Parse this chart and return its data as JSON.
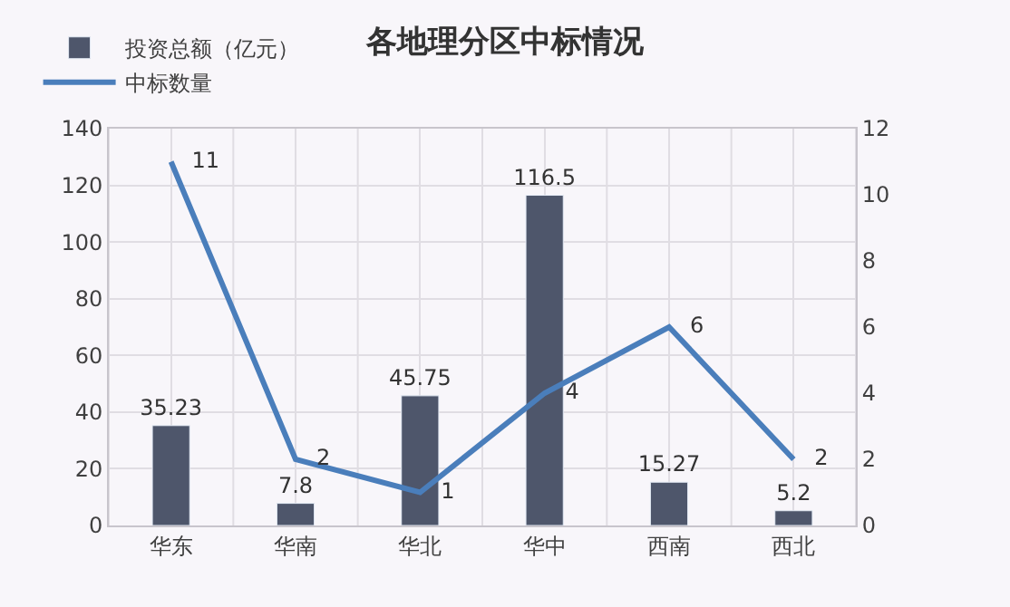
{
  "chart_data": {
    "type": "bar",
    "title": "各地理分区中标情况",
    "categories": [
      "华东",
      "华南",
      "华北",
      "华中",
      "西南",
      "西北"
    ],
    "series": [
      {
        "name": "投资总额（亿元）",
        "color": "#4e566b",
        "values": [
          35.23,
          7.8,
          45.75,
          116.5,
          15.27,
          5.2
        ]
      },
      {
        "name": "中标数量",
        "type": "line",
        "axis": "y2",
        "color": "#4a7ebb",
        "values": [
          11,
          2,
          1,
          4,
          6,
          2
        ]
      }
    ],
    "ylim": [
      0,
      140
    ],
    "yticks": [
      0,
      20,
      40,
      60,
      80,
      100,
      120,
      140
    ],
    "y2lim": [
      0,
      12
    ],
    "y2ticks": [
      0,
      2,
      4,
      6,
      8,
      10,
      12
    ],
    "data_labels": true,
    "grid": true,
    "legend": "top left",
    "marker": "none",
    "line_style": "solid"
  }
}
